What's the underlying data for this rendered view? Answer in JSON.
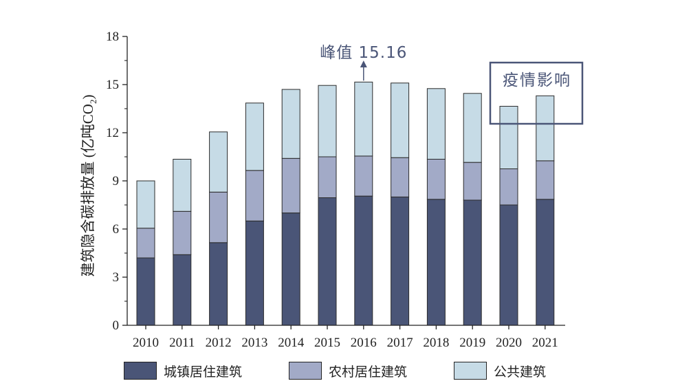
{
  "chart_data": {
    "type": "bar",
    "stacked": true,
    "ylabel": "建筑隐含碳排放量 (亿吨CO₂)",
    "ylabel_main": "建筑隐含碳排放量 (亿吨CO",
    "ylabel_sub": "2",
    "ylabel_close": ")",
    "ylim": [
      0,
      18
    ],
    "yticks": [
      0,
      3,
      6,
      9,
      12,
      15,
      18
    ],
    "categories": [
      "2010",
      "2011",
      "2012",
      "2013",
      "2014",
      "2015",
      "2016",
      "2017",
      "2018",
      "2019",
      "2020",
      "2021"
    ],
    "series": [
      {
        "name": "城镇居住建筑",
        "color": "#4a5577",
        "values": [
          4.2,
          4.4,
          5.15,
          6.5,
          7.0,
          7.95,
          8.05,
          8.0,
          7.85,
          7.8,
          7.5,
          7.85
        ]
      },
      {
        "name": "农村居住建筑",
        "color": "#a2aac7",
        "values": [
          1.85,
          2.7,
          3.15,
          3.15,
          3.4,
          2.55,
          2.5,
          2.45,
          2.5,
          2.35,
          2.25,
          2.4
        ]
      },
      {
        "name": "公共建筑",
        "color": "#c6dbe6",
        "values": [
          2.95,
          3.25,
          3.75,
          4.2,
          4.3,
          4.45,
          4.61,
          4.65,
          4.4,
          4.3,
          3.9,
          4.05
        ]
      }
    ],
    "annotations": {
      "peak": {
        "label": "峰值 15.16",
        "year": "2016",
        "value": 15.16
      },
      "covid": {
        "label": "疫情影响",
        "years": [
          "2020",
          "2021"
        ],
        "frame_color": "#4a5577"
      }
    },
    "legend_position": "bottom",
    "grid": false
  }
}
